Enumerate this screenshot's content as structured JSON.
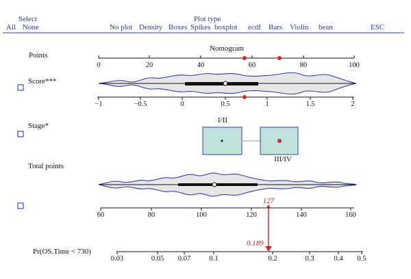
{
  "menu": {
    "select": {
      "title": "Select",
      "all": "All",
      "none": "None"
    },
    "plot_type": {
      "title": "Plot type",
      "options": [
        "No plot",
        "Density",
        "Boxes",
        "Spikes",
        "boxplot",
        "ecdf",
        "Bars",
        "Violin",
        "bean"
      ]
    },
    "esc": "ESC"
  },
  "nomogram": {
    "title": "Nomogram",
    "rows": {
      "points": {
        "label": "Points",
        "ticks": [
          "0",
          "20",
          "40",
          "60",
          "80",
          "100"
        ],
        "markers": [
          57,
          71
        ]
      },
      "score": {
        "label": "Score***",
        "ticks": [
          "−1",
          "−0.5",
          "0",
          "0.5",
          "1",
          "1.5",
          "2"
        ],
        "marker": 0.73
      },
      "stage": {
        "label": "Stage*",
        "levels": [
          "I/II",
          "III/IV"
        ],
        "selected": "III/IV"
      },
      "total_points": {
        "label": "Total points",
        "ticks": [
          "60",
          "80",
          "100",
          "120",
          "140",
          "160"
        ],
        "value_label": "127",
        "value": 127
      },
      "probability": {
        "label": "Pr(OS.Time < 730)",
        "ticks": [
          "0.03",
          "0.05",
          "0.07",
          "0.1",
          "0.2",
          "0.3",
          "0.4",
          "0.5"
        ],
        "value_label": "0.189",
        "value": 0.189
      }
    }
  },
  "colors": {
    "accent": "#2f3fa8",
    "marker": "#d42a2a",
    "violin_fill": "#e6e6e6",
    "box_fill": "#bfe3dc"
  }
}
